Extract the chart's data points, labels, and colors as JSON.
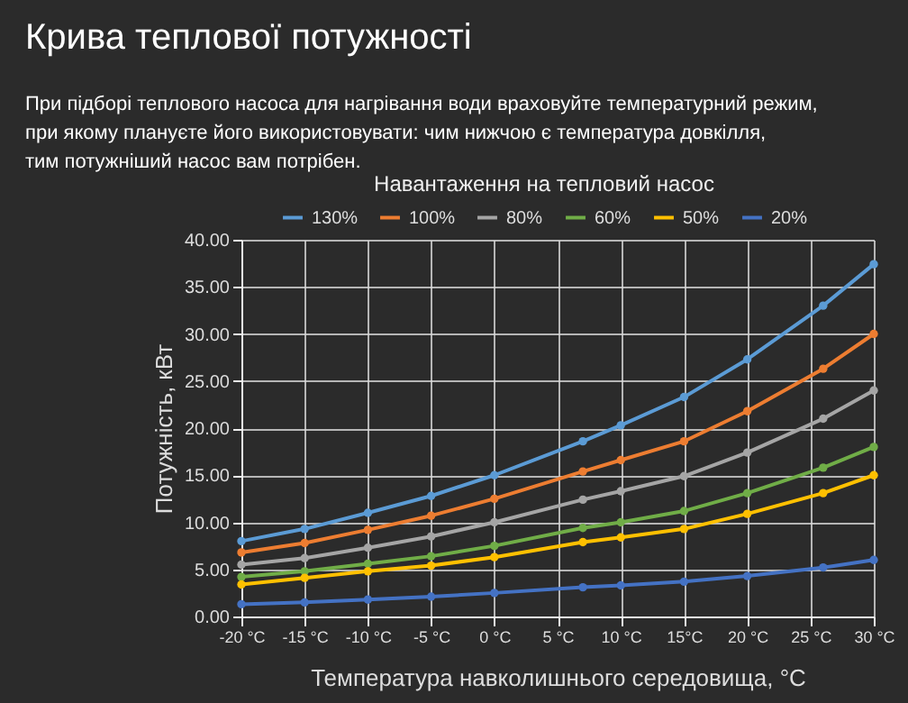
{
  "chart_data": {
    "type": "line",
    "title": "Крива теплової потужності",
    "subtitle": "При підборі теплового насоса для нагрівання води враховуйте температурний режим,\nпри якому плануєте його використовувати: чим нижчою є температура довкілля,\nтим потужніший насос вам потрібен.",
    "xlabel": "Температура навколишнього середовища, °C",
    "ylabel": "Потужність, кВт",
    "legend_title": "Навантаження на тепловий насос",
    "x": [
      -20,
      -15,
      -10,
      -5,
      0,
      7,
      10,
      15,
      20,
      26,
      30
    ],
    "series": [
      {
        "name": "130%",
        "color": "#5b9bd5",
        "values": [
          8.0,
          9.3,
          11.0,
          12.8,
          15.0,
          18.6,
          20.3,
          23.3,
          27.3,
          33.0,
          37.4
        ]
      },
      {
        "name": "100%",
        "color": "#ed7d31",
        "values": [
          6.8,
          7.8,
          9.2,
          10.7,
          12.5,
          15.4,
          16.6,
          18.6,
          21.8,
          26.3,
          30.0
        ]
      },
      {
        "name": "80%",
        "color": "#a5a5a5",
        "values": [
          5.5,
          6.2,
          7.3,
          8.5,
          10.0,
          12.4,
          13.3,
          14.9,
          17.4,
          21.0,
          24.0
        ]
      },
      {
        "name": "60%",
        "color": "#70ad47",
        "values": [
          4.2,
          4.8,
          5.6,
          6.4,
          7.5,
          9.4,
          10.0,
          11.2,
          13.1,
          15.8,
          18.0
        ]
      },
      {
        "name": "50%",
        "color": "#ffc000",
        "values": [
          3.4,
          4.1,
          4.8,
          5.4,
          6.3,
          7.9,
          8.4,
          9.3,
          10.9,
          13.1,
          15.0
        ]
      },
      {
        "name": "20%",
        "color": "#4472c4",
        "values": [
          1.3,
          1.5,
          1.8,
          2.1,
          2.5,
          3.1,
          3.3,
          3.7,
          4.3,
          5.2,
          6.0
        ]
      }
    ],
    "xlim": [
      -20,
      30
    ],
    "xticks": [
      {
        "value": -20,
        "label": "-20 °C"
      },
      {
        "value": -15,
        "label": "-15 °C"
      },
      {
        "value": -10,
        "label": "-10 °C"
      },
      {
        "value": -5,
        "label": "-5 °C"
      },
      {
        "value": 0,
        "label": "0 °C"
      },
      {
        "value": 5,
        "label": "5 °C"
      },
      {
        "value": 10,
        "label": "10 °C"
      },
      {
        "value": 15,
        "label": "15°C"
      },
      {
        "value": 20,
        "label": "20 °C"
      },
      {
        "value": 25,
        "label": "25 °C"
      },
      {
        "value": 30,
        "label": "30 °C"
      }
    ],
    "ylim": [
      0,
      40
    ],
    "yticks": [
      {
        "value": 0,
        "label": "0.00"
      },
      {
        "value": 5,
        "label": "5.00"
      },
      {
        "value": 10,
        "label": "10.00"
      },
      {
        "value": 15,
        "label": "15.00"
      },
      {
        "value": 20,
        "label": "20.00"
      },
      {
        "value": 25,
        "label": "25.00"
      },
      {
        "value": 30,
        "label": "30.00"
      },
      {
        "value": 35,
        "label": "35.00"
      },
      {
        "value": 40,
        "label": "40.00"
      }
    ],
    "grid": true,
    "legend": "top",
    "marker": "circle",
    "line_style": "solid"
  }
}
